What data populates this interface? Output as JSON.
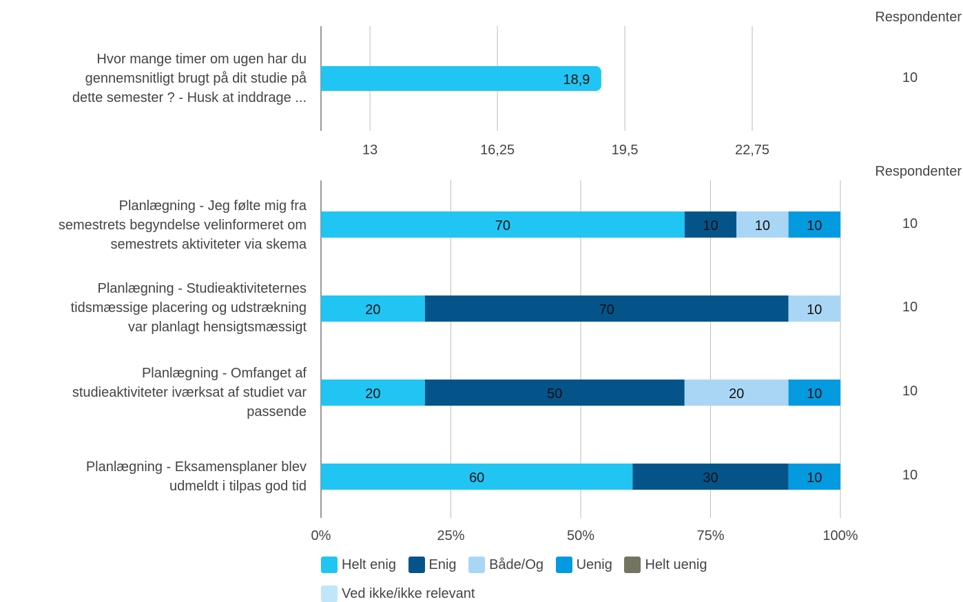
{
  "respondents_header": "Respondenter",
  "colors": {
    "helt_enig": "#21c5f3",
    "enig": "#04548a",
    "baade_og": "#aad6f6",
    "uenig": "#049ae0",
    "helt_uenig": "#737462",
    "ved_ikke": "#bfe6f9",
    "grid": "#bbbbbb",
    "axis": "#999999"
  },
  "chart_data": [
    {
      "type": "bar",
      "orientation": "horizontal",
      "categories": [
        "Hvor mange timer om ugen har du gennemsnitligt brugt på dit studie på dette semester ? - Husk at inddrage ..."
      ],
      "values": [
        18.9
      ],
      "value_labels": [
        "18,9"
      ],
      "xlim": [
        11.75,
        26
      ],
      "xticks": [
        13,
        16.25,
        19.5,
        22.75
      ],
      "xtick_labels": [
        "13",
        "16,25",
        "19,5",
        "22,75"
      ],
      "respondents": [
        "10"
      ],
      "grid": true
    },
    {
      "type": "bar",
      "orientation": "horizontal",
      "stacked": true,
      "categories": [
        "Planlægning - Jeg følte mig fra semestrets begyndelse velinformeret om semestrets aktiviteter via skema",
        "Planlægning - Studieaktiviteternes tidsmæssige placering og udstrækning var planlagt hensigtsmæssigt",
        "Planlægning - Omfanget af studieaktiviteter iværksat af studiet var passende",
        "Planlægning - Eksamensplaner blev udmeldt i tilpas god tid"
      ],
      "series": [
        {
          "name": "Helt enig",
          "values": [
            70,
            20,
            20,
            60
          ]
        },
        {
          "name": "Enig",
          "values": [
            10,
            70,
            50,
            30
          ]
        },
        {
          "name": "Både/Og",
          "values": [
            10,
            10,
            20,
            0
          ]
        },
        {
          "name": "Uenig",
          "values": [
            10,
            0,
            10,
            10
          ]
        },
        {
          "name": "Helt uenig",
          "values": [
            0,
            0,
            0,
            0
          ]
        },
        {
          "name": "Ved ikke/ikke relevant",
          "values": [
            0,
            0,
            0,
            0
          ]
        }
      ],
      "xlim": [
        0,
        100
      ],
      "xticks": [
        0,
        25,
        50,
        75,
        100
      ],
      "xtick_labels": [
        "0%",
        "25%",
        "50%",
        "75%",
        "100%"
      ],
      "respondents": [
        "10",
        "10",
        "10",
        "10"
      ],
      "legend": "bottom",
      "grid": true
    }
  ],
  "q_labels": {
    "q0": [
      "Hvor mange timer om ugen har du",
      "gennemsnitligt brugt på dit studie på",
      "dette semester ? - Husk at inddrage ..."
    ],
    "q1": [
      "Planlægning - Jeg følte mig fra",
      "semestrets begyndelse velinformeret om",
      "semestrets aktiviteter via skema"
    ],
    "q2": [
      "Planlægning - Studieaktiviteternes",
      "tidsmæssige placering og udstrækning",
      "var planlagt hensigtsmæssigt"
    ],
    "q3": [
      "Planlægning - Omfanget af",
      "studieaktiviteter iværksat af studiet var",
      "passende"
    ],
    "q4": [
      "Planlægning - Eksamensplaner blev",
      "udmeldt i tilpas god tid"
    ]
  }
}
